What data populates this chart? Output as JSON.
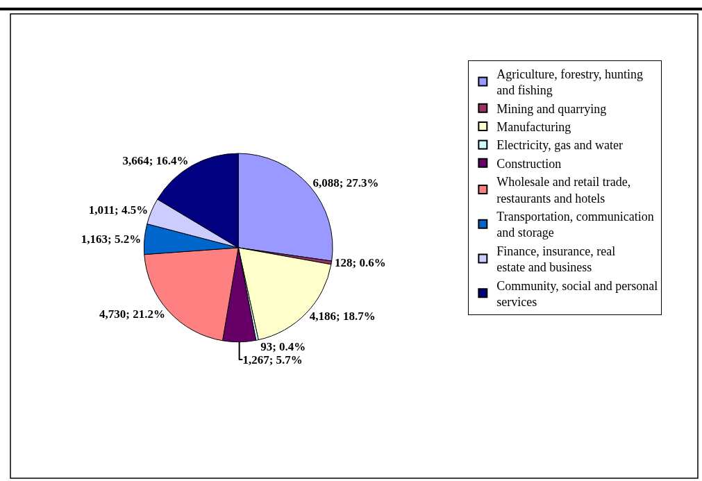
{
  "chart_data": {
    "type": "pie",
    "categories": [
      "Agriculture, forestry, hunting and fishing",
      "Mining and quarrying",
      "Manufacturing",
      "Electricity, gas and water",
      "Construction",
      "Wholesale and retail trade, restaurants and hotels",
      "Transportation, communication and storage",
      "Finance, insurance, real estate and business",
      "Community, social and personal services"
    ],
    "values": [
      6088,
      128,
      4186,
      93,
      1267,
      4730,
      1163,
      1011,
      3664
    ],
    "colors": [
      "#9999ff",
      "#993366",
      "#ffffcc",
      "#ccffff",
      "#660066",
      "#ff8080",
      "#0066cc",
      "#ccccff",
      "#000080"
    ],
    "value_labels": [
      "6,088; 27.3%",
      "128; 0.6%",
      "4,186; 18.7%",
      "93; 0.4%",
      "1,267; 5.7%",
      "4,730; 21.2%",
      "1,163; 5.2%",
      "1,011; 4.5%",
      "3,664; 16.4%"
    ],
    "legend": "right"
  }
}
